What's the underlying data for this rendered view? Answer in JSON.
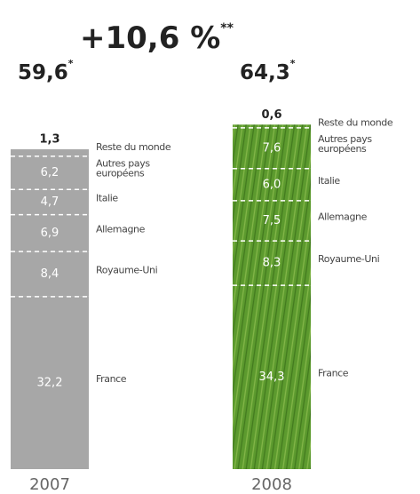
{
  "chart_data": {
    "type": "stacked_bar",
    "change": {
      "value": 10.6,
      "label": "+10,6 %",
      "note": "**"
    },
    "categories": [
      "2007",
      "2008"
    ],
    "totals": [
      {
        "value": 59.6,
        "label": "59,6",
        "note": "*"
      },
      {
        "value": 64.3,
        "label": "64,3",
        "note": "*"
      }
    ],
    "bar_colors": [
      "#a7a7a7",
      "#5c9a2e"
    ],
    "series": [
      {
        "name": "France",
        "values": [
          32.2,
          34.3
        ],
        "value_labels": [
          "32,2",
          "34,3"
        ]
      },
      {
        "name": "Royaume-Uni",
        "values": [
          8.4,
          8.3
        ],
        "value_labels": [
          "8,4",
          "8,3"
        ]
      },
      {
        "name": "Allemagne",
        "values": [
          6.9,
          7.5
        ],
        "value_labels": [
          "6,9",
          "7,5"
        ]
      },
      {
        "name": "Italie",
        "values": [
          4.7,
          6.0
        ],
        "value_labels": [
          "4,7",
          "6,0"
        ]
      },
      {
        "name": "Autres pays européens",
        "values": [
          6.2,
          7.6
        ],
        "value_labels": [
          "6,2",
          "7,6"
        ]
      },
      {
        "name": "Reste du monde",
        "values": [
          1.3,
          0.6
        ],
        "value_labels": [
          "1,3",
          "0,6"
        ]
      }
    ]
  }
}
